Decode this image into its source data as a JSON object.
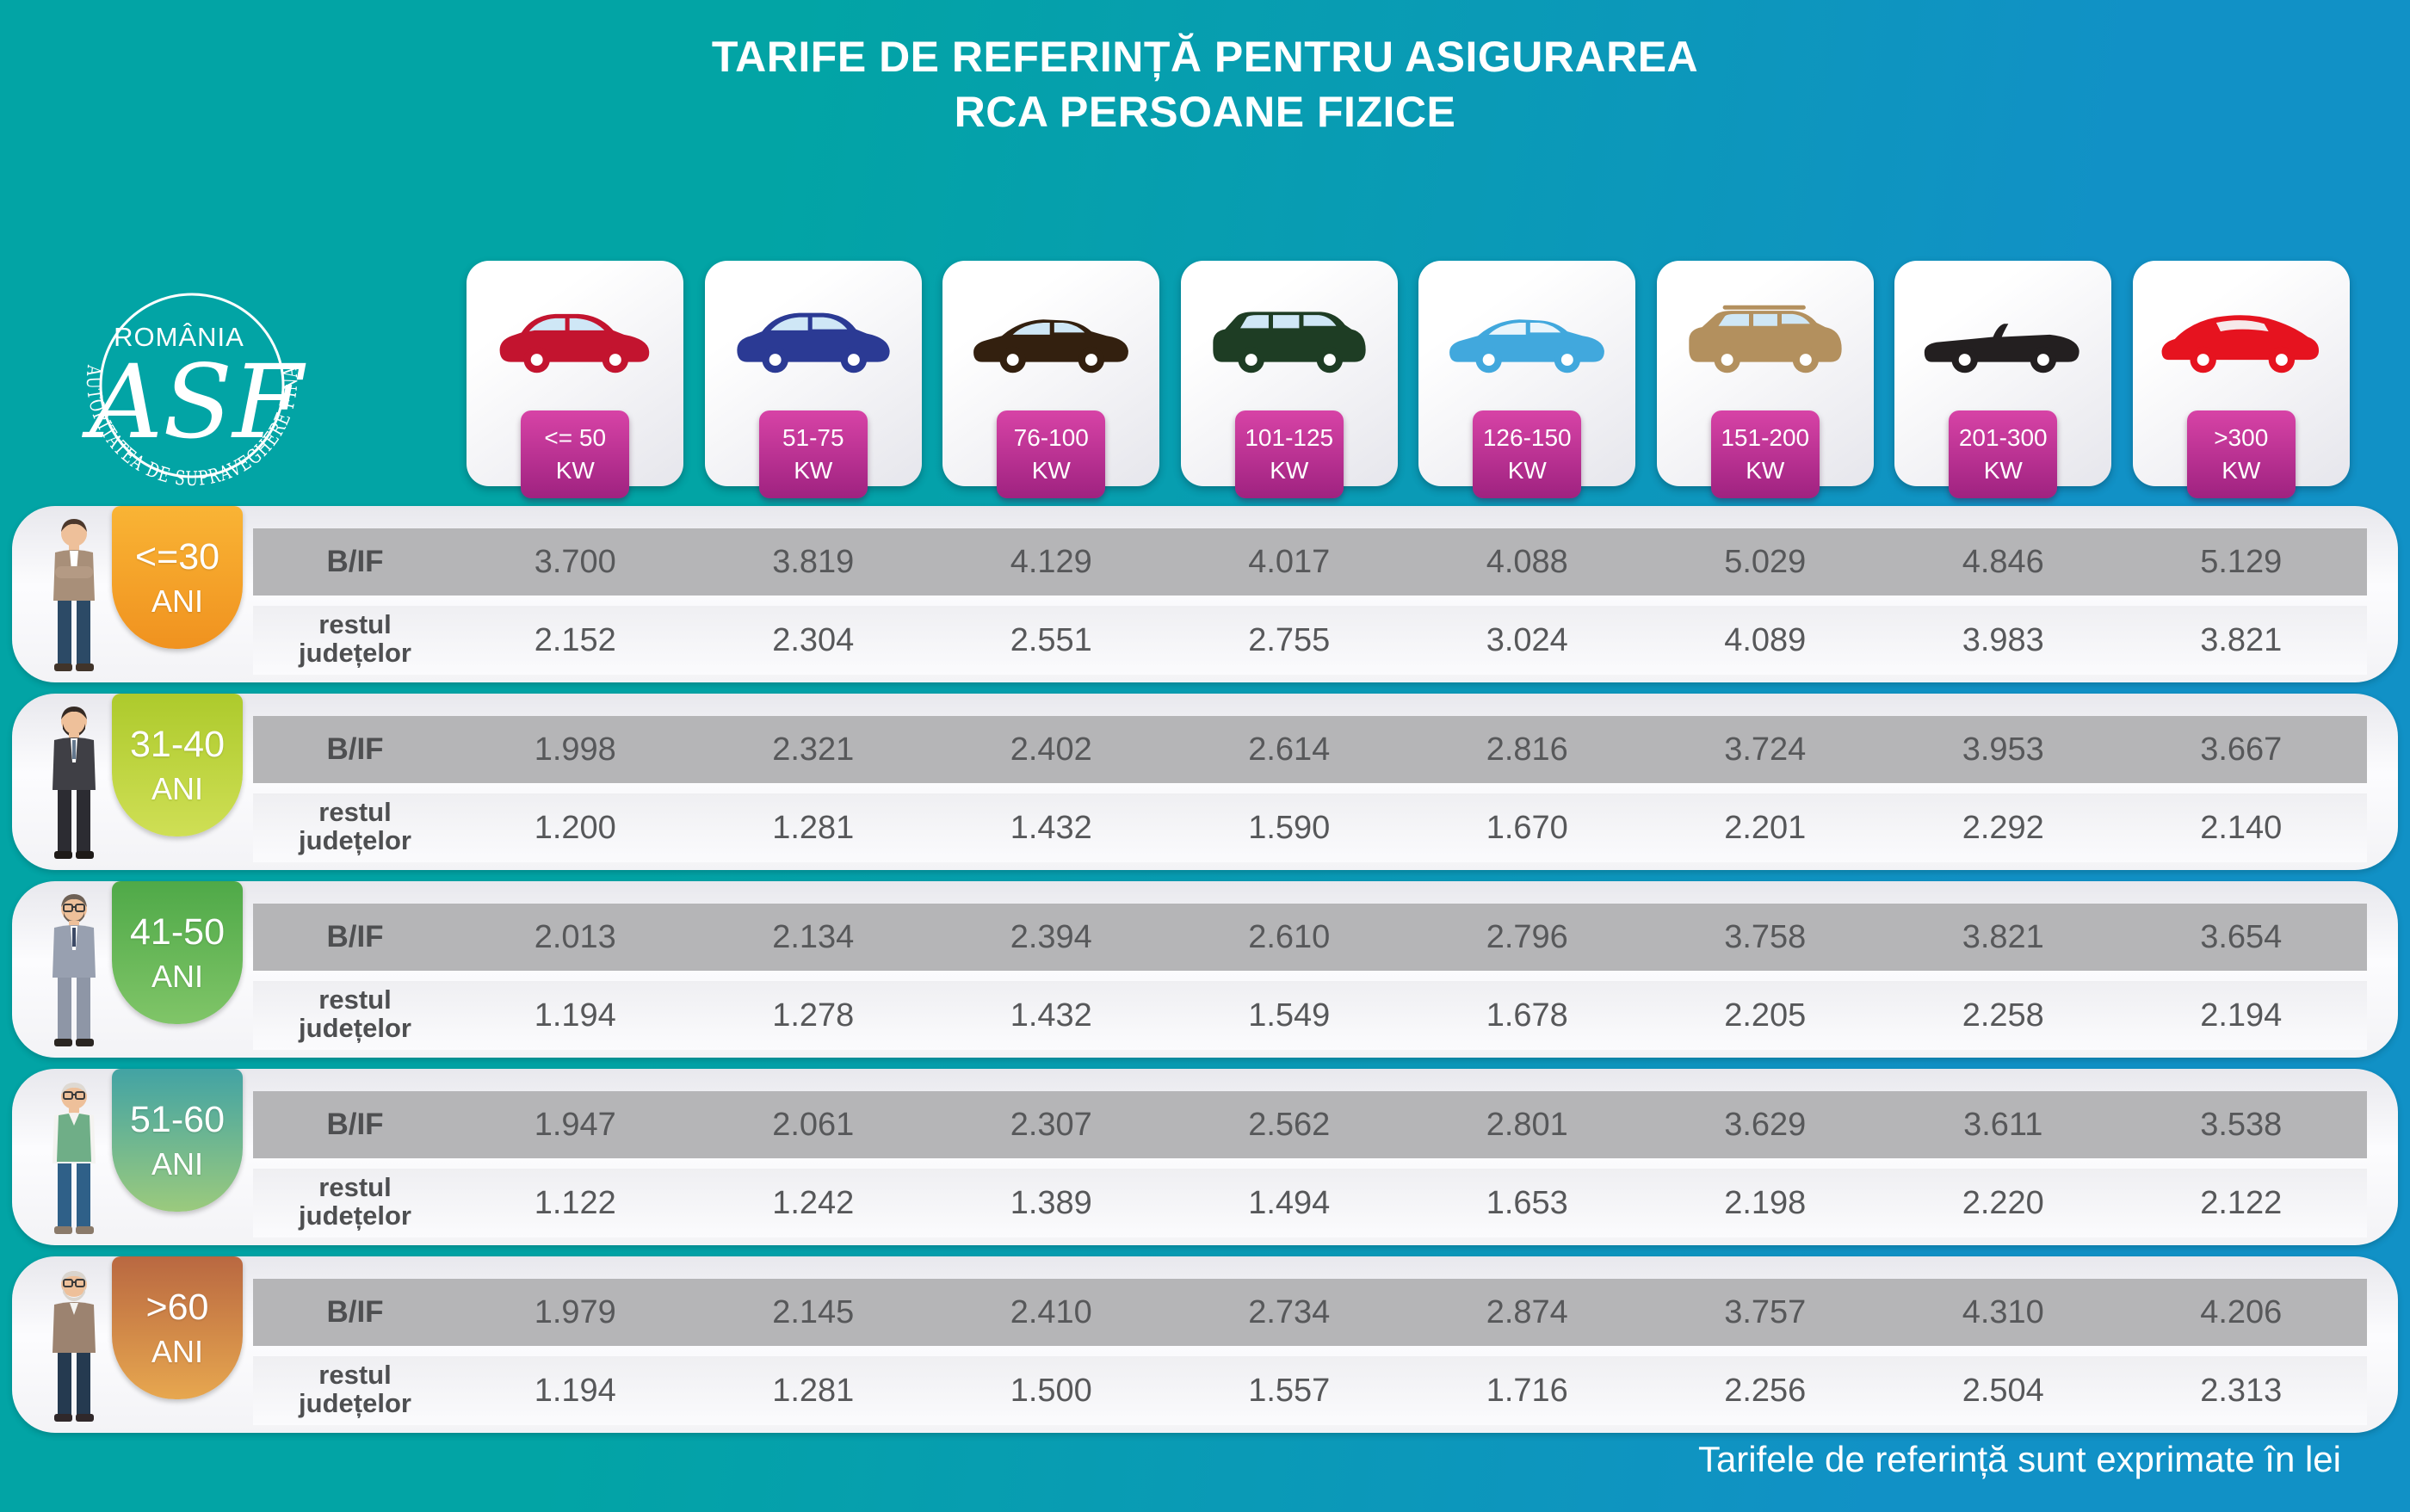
{
  "title": {
    "line1": "TARIFE DE REFERINȚĂ PENTRU ASIGURAREA",
    "line2": "RCA PERSOANE FIZICE"
  },
  "logo": {
    "country": "ROMÂNIA",
    "monogram": "ASF",
    "arc_text": "AUTORITATEA DE SUPRAVEGHERE FINANCIARĂ"
  },
  "footer_note": "Tarifele de referință sunt exprimate în lei",
  "row_labels": {
    "bif": "B/IF",
    "rest_line1": "restul",
    "rest_line2": "județelor"
  },
  "accent_colors": {
    "background_teal": "#02a4a5",
    "background_blue": "#1191c6",
    "kw_badge_magenta": "#b02a8c",
    "bif_band_gray": "#b5b5b7",
    "value_ink": "#57585a"
  },
  "power_classes": [
    {
      "kw_line1": "<= 50",
      "kw_line2": "KW",
      "car": "hatchback",
      "color": "#c3142f"
    },
    {
      "kw_line1": "51-75",
      "kw_line2": "KW",
      "car": "crossover",
      "color": "#2b3a94"
    },
    {
      "kw_line1": "76-100",
      "kw_line2": "KW",
      "car": "sedan",
      "color": "#33200f"
    },
    {
      "kw_line1": "101-125",
      "kw_line2": "KW",
      "car": "minivan",
      "color": "#1e3d24"
    },
    {
      "kw_line1": "126-150",
      "kw_line2": "KW",
      "car": "sedan",
      "color": "#41a8dd"
    },
    {
      "kw_line1": "151-200",
      "kw_line2": "KW",
      "car": "suv",
      "color": "#b3905e"
    },
    {
      "kw_line1": "201-300",
      "kw_line2": "KW",
      "car": "convertible",
      "color": "#231f20"
    },
    {
      "kw_line1": ">300",
      "kw_line2": "KW",
      "car": "sports",
      "color": "#e6131f"
    }
  ],
  "age_groups": [
    {
      "age_line1": "<=30",
      "age_line2": "ANI",
      "bif": [
        "3.700",
        "3.819",
        "4.129",
        "4.017",
        "4.088",
        "5.029",
        "4.846",
        "5.129"
      ],
      "rest": [
        "2.152",
        "2.304",
        "2.551",
        "2.755",
        "3.024",
        "4.089",
        "3.983",
        "3.821"
      ]
    },
    {
      "age_line1": "31-40",
      "age_line2": "ANI",
      "bif": [
        "1.998",
        "2.321",
        "2.402",
        "2.614",
        "2.816",
        "3.724",
        "3.953",
        "3.667"
      ],
      "rest": [
        "1.200",
        "1.281",
        "1.432",
        "1.590",
        "1.670",
        "2.201",
        "2.292",
        "2.140"
      ]
    },
    {
      "age_line1": "41-50",
      "age_line2": "ANI",
      "bif": [
        "2.013",
        "2.134",
        "2.394",
        "2.610",
        "2.796",
        "3.758",
        "3.821",
        "3.654"
      ],
      "rest": [
        "1.194",
        "1.278",
        "1.432",
        "1.549",
        "1.678",
        "2.205",
        "2.258",
        "2.194"
      ]
    },
    {
      "age_line1": "51-60",
      "age_line2": "ANI",
      "bif": [
        "1.947",
        "2.061",
        "2.307",
        "2.562",
        "2.801",
        "3.629",
        "3.611",
        "3.538"
      ],
      "rest": [
        "1.122",
        "1.242",
        "1.389",
        "1.494",
        "1.653",
        "2.198",
        "2.220",
        "2.122"
      ]
    },
    {
      "age_line1": ">60",
      "age_line2": "ANI",
      "bif": [
        "1.979",
        "2.145",
        "2.410",
        "2.734",
        "2.874",
        "3.757",
        "4.310",
        "4.206"
      ],
      "rest": [
        "1.194",
        "1.281",
        "1.500",
        "1.557",
        "1.716",
        "2.256",
        "2.504",
        "2.313"
      ]
    }
  ],
  "chart_data": {
    "type": "table",
    "title": "TARIFE DE REFERINȚĂ PENTRU ASIGURAREA RCA PERSOANE FIZICE",
    "unit_note": "Tarifele de referință sunt exprimate în lei",
    "columns_kw": [
      "<= 50 KW",
      "51-75 KW",
      "76-100 KW",
      "101-125 KW",
      "126-150 KW",
      "151-200 KW",
      "201-300 KW",
      ">300 KW"
    ],
    "region_rows": [
      "B/IF",
      "restul județelor"
    ],
    "rows": [
      {
        "age": "<=30 ANI",
        "bif_lei": [
          3700,
          3819,
          4129,
          4017,
          4088,
          5029,
          4846,
          5129
        ],
        "rest_lei": [
          2152,
          2304,
          2551,
          2755,
          3024,
          4089,
          3983,
          3821
        ]
      },
      {
        "age": "31-40 ANI",
        "bif_lei": [
          1998,
          2321,
          2402,
          2614,
          2816,
          3724,
          3953,
          3667
        ],
        "rest_lei": [
          1200,
          1281,
          1432,
          1590,
          1670,
          2201,
          2292,
          2140
        ]
      },
      {
        "age": "41-50 ANI",
        "bif_lei": [
          2013,
          2134,
          2394,
          2610,
          2796,
          3758,
          3821,
          3654
        ],
        "rest_lei": [
          1194,
          1278,
          1432,
          1549,
          1678,
          2205,
          2258,
          2194
        ]
      },
      {
        "age": "51-60 ANI",
        "bif_lei": [
          1947,
          2061,
          2307,
          2562,
          2801,
          3629,
          3611,
          3538
        ],
        "rest_lei": [
          1122,
          1242,
          1389,
          1494,
          1653,
          2198,
          2220,
          2122
        ]
      },
      {
        "age": ">60 ANI",
        "bif_lei": [
          1979,
          2145,
          2410,
          2734,
          2874,
          3757,
          4310,
          4206
        ],
        "rest_lei": [
          1194,
          1281,
          1500,
          1557,
          1716,
          2256,
          2504,
          2313
        ]
      }
    ]
  }
}
